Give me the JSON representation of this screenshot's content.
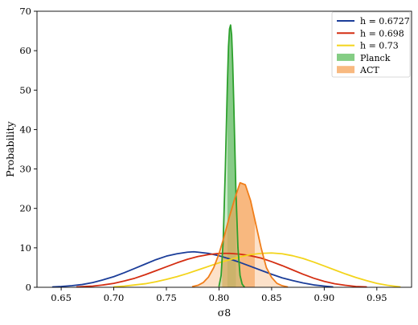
{
  "chart_data": {
    "type": "line",
    "xlabel": "σ8",
    "ylabel": "Probability",
    "xlim": [
      0.627,
      0.983
    ],
    "ylim": [
      0,
      70
    ],
    "xticks": [
      "0.65",
      "0.70",
      "0.75",
      "0.80",
      "0.85",
      "0.90",
      "0.95"
    ],
    "xtick_values": [
      0.65,
      0.7,
      0.75,
      0.8,
      0.85,
      0.9,
      0.95
    ],
    "yticks": [
      "0",
      "10",
      "20",
      "30",
      "40",
      "50",
      "60",
      "70"
    ],
    "ytick_values": [
      0,
      10,
      20,
      30,
      40,
      50,
      60,
      70
    ],
    "grid": false,
    "legend_position": "top-right",
    "series": [
      {
        "name": "h = 0.6727",
        "kind": "curve",
        "color": "#1b3d99",
        "x": [
          0.642,
          0.65,
          0.66,
          0.67,
          0.68,
          0.69,
          0.7,
          0.71,
          0.72,
          0.73,
          0.74,
          0.75,
          0.76,
          0.77,
          0.776,
          0.78,
          0.79,
          0.8,
          0.81,
          0.82,
          0.83,
          0.84,
          0.85,
          0.86,
          0.87,
          0.88,
          0.89,
          0.9,
          0.908
        ],
        "y": [
          0.1,
          0.2,
          0.4,
          0.7,
          1.2,
          1.9,
          2.7,
          3.7,
          4.8,
          5.9,
          7.0,
          7.9,
          8.5,
          8.9,
          9.0,
          8.9,
          8.6,
          8.0,
          7.2,
          6.3,
          5.3,
          4.3,
          3.3,
          2.4,
          1.7,
          1.1,
          0.6,
          0.3,
          0.1
        ]
      },
      {
        "name": "h = 0.698",
        "kind": "curve",
        "color": "#d42e12",
        "x": [
          0.665,
          0.68,
          0.69,
          0.7,
          0.71,
          0.72,
          0.73,
          0.74,
          0.75,
          0.76,
          0.77,
          0.78,
          0.79,
          0.8,
          0.81,
          0.82,
          0.83,
          0.84,
          0.85,
          0.86,
          0.87,
          0.88,
          0.89,
          0.9,
          0.91,
          0.92,
          0.93,
          0.94
        ],
        "y": [
          0.1,
          0.3,
          0.6,
          1.0,
          1.6,
          2.3,
          3.2,
          4.2,
          5.2,
          6.2,
          7.1,
          7.8,
          8.3,
          8.6,
          8.6,
          8.4,
          8.0,
          7.4,
          6.5,
          5.5,
          4.4,
          3.3,
          2.3,
          1.5,
          0.9,
          0.5,
          0.2,
          0.1
        ]
      },
      {
        "name": "h = 0.73",
        "kind": "curve",
        "color": "#f3d41b",
        "x": [
          0.7,
          0.71,
          0.72,
          0.73,
          0.74,
          0.75,
          0.76,
          0.77,
          0.78,
          0.79,
          0.8,
          0.81,
          0.82,
          0.83,
          0.84,
          0.85,
          0.86,
          0.87,
          0.88,
          0.89,
          0.9,
          0.91,
          0.92,
          0.93,
          0.94,
          0.95,
          0.96,
          0.972
        ],
        "y": [
          0.1,
          0.3,
          0.6,
          0.9,
          1.4,
          2.0,
          2.7,
          3.5,
          4.4,
          5.3,
          6.2,
          7.0,
          7.7,
          8.3,
          8.6,
          8.7,
          8.5,
          8.0,
          7.3,
          6.4,
          5.4,
          4.4,
          3.4,
          2.5,
          1.7,
          1.0,
          0.5,
          0.1
        ]
      },
      {
        "name": "Planck",
        "kind": "filled",
        "color": "#2ca02c",
        "fill": "#6ec46e",
        "fill_opacity": 0.75,
        "x": [
          0.8,
          0.802,
          0.804,
          0.806,
          0.808,
          0.809,
          0.81,
          0.811,
          0.812,
          0.813,
          0.814,
          0.815,
          0.816,
          0.818,
          0.82,
          0.822,
          0.824
        ],
        "y": [
          0.3,
          3.0,
          12.0,
          30.0,
          52.0,
          61.0,
          65.5,
          66.5,
          64.0,
          57.0,
          47.0,
          36.0,
          25.0,
          10.0,
          3.0,
          0.8,
          0.1
        ]
      },
      {
        "name": "ACT",
        "kind": "filled",
        "color": "#f07e1a",
        "fill": "#f7ad6a",
        "fill_opacity": 0.8,
        "x": [
          0.775,
          0.78,
          0.785,
          0.79,
          0.795,
          0.8,
          0.805,
          0.81,
          0.815,
          0.82,
          0.825,
          0.83,
          0.835,
          0.84,
          0.845,
          0.85,
          0.855,
          0.86,
          0.865
        ],
        "y": [
          0.2,
          0.5,
          1.2,
          2.6,
          5.0,
          8.5,
          13.0,
          18.0,
          22.5,
          26.5,
          26.0,
          22.0,
          16.0,
          10.0,
          5.0,
          2.5,
          1.0,
          0.4,
          0.1
        ]
      }
    ],
    "bands": [
      {
        "name": "Planck",
        "x_from": 0.808,
        "x_to": 0.816,
        "color": "#2ca02c",
        "opacity": 0.5
      },
      {
        "name": "ACT",
        "x_from": 0.803,
        "x_to": 0.834,
        "color": "#f7a45a",
        "opacity": 0.7
      }
    ]
  }
}
